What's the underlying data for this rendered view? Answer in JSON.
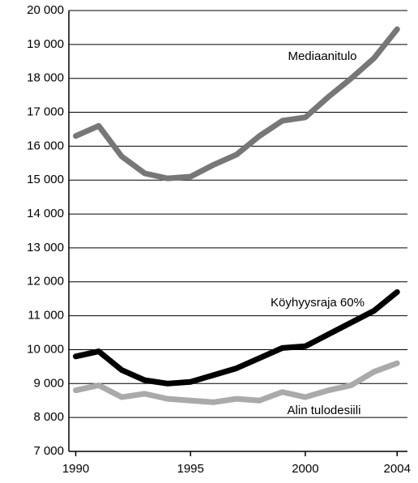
{
  "chart_data": {
    "type": "line",
    "x": [
      1990,
      1991,
      1992,
      1993,
      1994,
      1995,
      1996,
      1997,
      1998,
      1999,
      2000,
      2001,
      2002,
      2003,
      2004
    ],
    "series": [
      {
        "name": "Mediaanitulo",
        "color": "#777777",
        "values": [
          16300,
          16600,
          15700,
          15200,
          15050,
          15100,
          15450,
          15750,
          16300,
          16750,
          16850,
          17450,
          18000,
          18600,
          19450
        ]
      },
      {
        "name": "Köyhyysraja 60%",
        "color": "#000000",
        "values": [
          9800,
          9950,
          9400,
          9100,
          9000,
          9050,
          9250,
          9450,
          9750,
          10050,
          10100,
          10450,
          10800,
          11150,
          11700
        ]
      },
      {
        "name": "Alin tulodesiili",
        "color": "#aaaaaa",
        "values": [
          8800,
          8950,
          8600,
          8700,
          8550,
          8500,
          8450,
          8550,
          8500,
          8750,
          8600,
          8800,
          8950,
          9350,
          9600
        ]
      }
    ],
    "xlim": [
      1989.7,
      2004.45
    ],
    "xticks": [
      1990,
      1995,
      2000,
      2004
    ],
    "ylim": [
      7000,
      20000
    ],
    "yticks": [
      {
        "value": 7000,
        "label": "7 000"
      },
      {
        "value": 8000,
        "label": "8 000"
      },
      {
        "value": 9000,
        "label": "9 000"
      },
      {
        "value": 10000,
        "label": "10 000"
      },
      {
        "value": 11000,
        "label": "11 000"
      },
      {
        "value": 12000,
        "label": "12 000"
      },
      {
        "value": 13000,
        "label": "13 000"
      },
      {
        "value": 14000,
        "label": "14 000"
      },
      {
        "value": 15000,
        "label": "15 000"
      },
      {
        "value": 16000,
        "label": "16 000"
      },
      {
        "value": 17000,
        "label": "17 000"
      },
      {
        "value": 18000,
        "label": "18 000"
      },
      {
        "value": 19000,
        "label": "19 000"
      },
      {
        "value": 20000,
        "label": "20 000"
      }
    ],
    "grid": true
  }
}
